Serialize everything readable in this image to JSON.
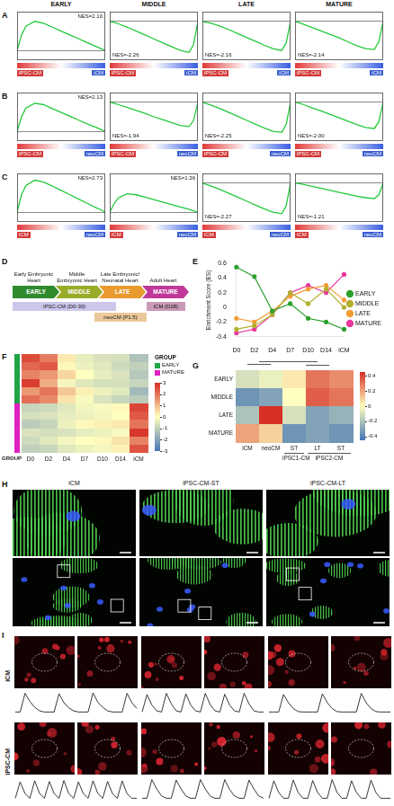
{
  "chart_data": [
    {
      "type": "line",
      "panel": "A",
      "x": [
        0,
        5,
        10,
        20,
        30,
        40,
        50,
        60,
        70,
        80,
        90,
        95,
        100
      ],
      "values": [
        0,
        0.32,
        0.5,
        0.6,
        0.56,
        0.48,
        0.4,
        0.32,
        0.24,
        0.16,
        0.08,
        0.04,
        0
      ],
      "xlim": [
        0,
        100
      ],
      "ylim": [
        -0.2,
        0.8
      ],
      "yticks": [
        0
      ],
      "grid": true,
      "tick_labels": false,
      "color": "#22c93a",
      "annotations": [
        "NES=2.10"
      ],
      "x_groups": [
        "iPSC-CM",
        "iCM"
      ]
    },
    {
      "type": "line",
      "panel": "A",
      "x": [
        0,
        5,
        10,
        20,
        30,
        40,
        50,
        60,
        70,
        80,
        90,
        95,
        100
      ],
      "values": [
        0,
        -0.02,
        -0.05,
        -0.12,
        -0.2,
        -0.28,
        -0.36,
        -0.44,
        -0.52,
        -0.6,
        -0.64,
        -0.48,
        0
      ],
      "xlim": [
        0,
        100
      ],
      "ylim": [
        -0.8,
        0.2
      ],
      "yticks": [
        0
      ],
      "grid": true,
      "tick_labels": false,
      "color": "#22c93a",
      "annotations": [
        "NES=-2.26"
      ],
      "x_groups": [
        "iPSC-CM",
        "iCM"
      ]
    },
    {
      "type": "line",
      "panel": "A",
      "x": [
        0,
        5,
        10,
        20,
        30,
        40,
        50,
        60,
        70,
        80,
        90,
        95,
        100
      ],
      "values": [
        0,
        -0.02,
        -0.04,
        -0.1,
        -0.17,
        -0.25,
        -0.33,
        -0.41,
        -0.49,
        -0.56,
        -0.6,
        -0.45,
        0
      ],
      "xlim": [
        0,
        100
      ],
      "ylim": [
        -0.8,
        0.2
      ],
      "yticks": [
        0
      ],
      "grid": true,
      "tick_labels": false,
      "color": "#22c93a",
      "annotations": [
        "NES=-2.16"
      ],
      "x_groups": [
        "iPSC-CM",
        "iCM"
      ]
    },
    {
      "type": "line",
      "panel": "A",
      "x": [
        0,
        5,
        10,
        20,
        30,
        40,
        50,
        60,
        70,
        80,
        90,
        95,
        100
      ],
      "values": [
        0,
        -0.03,
        -0.06,
        -0.13,
        -0.2,
        -0.27,
        -0.34,
        -0.42,
        -0.5,
        -0.56,
        -0.58,
        -0.42,
        0
      ],
      "xlim": [
        0,
        100
      ],
      "ylim": [
        -0.8,
        0.2
      ],
      "yticks": [
        0
      ],
      "grid": true,
      "tick_labels": false,
      "color": "#22c93a",
      "annotations": [
        "NES=-2.14"
      ],
      "x_groups": [
        "iPSC-CM",
        "iCM"
      ]
    },
    {
      "type": "line",
      "panel": "B",
      "x": [
        0,
        5,
        10,
        20,
        30,
        40,
        50,
        60,
        70,
        80,
        90,
        95,
        100
      ],
      "values": [
        0,
        0.3,
        0.48,
        0.58,
        0.55,
        0.47,
        0.39,
        0.31,
        0.23,
        0.15,
        0.08,
        0.04,
        0
      ],
      "xlim": [
        0,
        100
      ],
      "ylim": [
        -0.2,
        0.8
      ],
      "yticks": [
        0
      ],
      "grid": true,
      "tick_labels": false,
      "color": "#22c93a",
      "annotations": [
        "NES=2.13"
      ],
      "x_groups": [
        "iPSC-CM",
        "neoCM"
      ]
    },
    {
      "type": "line",
      "panel": "B",
      "x": [
        0,
        5,
        10,
        20,
        30,
        40,
        50,
        60,
        70,
        80,
        90,
        95,
        100
      ],
      "values": [
        0,
        -0.02,
        -0.05,
        -0.11,
        -0.17,
        -0.23,
        -0.3,
        -0.36,
        -0.42,
        -0.48,
        -0.5,
        -0.38,
        0
      ],
      "xlim": [
        0,
        100
      ],
      "ylim": [
        -0.8,
        0.2
      ],
      "yticks": [
        0
      ],
      "grid": true,
      "tick_labels": false,
      "color": "#22c93a",
      "annotations": [
        "NES=-1.94"
      ],
      "x_groups": [
        "iPSC-CM",
        "neoCM"
      ]
    },
    {
      "type": "line",
      "panel": "B",
      "x": [
        0,
        5,
        10,
        20,
        30,
        40,
        50,
        60,
        70,
        80,
        90,
        95,
        100
      ],
      "values": [
        0,
        -0.03,
        -0.06,
        -0.13,
        -0.21,
        -0.29,
        -0.37,
        -0.45,
        -0.53,
        -0.6,
        -0.62,
        -0.46,
        0
      ],
      "xlim": [
        0,
        100
      ],
      "ylim": [
        -0.8,
        0.2
      ],
      "yticks": [
        0
      ],
      "grid": true,
      "tick_labels": false,
      "color": "#22c93a",
      "annotations": [
        "NES=-2.25"
      ],
      "x_groups": [
        "iPSC-CM",
        "neoCM"
      ]
    },
    {
      "type": "line",
      "panel": "B",
      "x": [
        0,
        5,
        10,
        20,
        30,
        40,
        50,
        60,
        70,
        80,
        90,
        95,
        100
      ],
      "values": [
        0,
        -0.02,
        -0.05,
        -0.12,
        -0.18,
        -0.25,
        -0.32,
        -0.39,
        -0.46,
        -0.52,
        -0.54,
        -0.4,
        0
      ],
      "xlim": [
        0,
        100
      ],
      "ylim": [
        -0.8,
        0.2
      ],
      "yticks": [
        0
      ],
      "grid": true,
      "tick_labels": false,
      "color": "#22c93a",
      "annotations": [
        "NES=-2.00"
      ],
      "x_groups": [
        "iPSC-CM",
        "neoCM"
      ]
    },
    {
      "type": "line",
      "panel": "C",
      "x": [
        0,
        5,
        10,
        20,
        30,
        40,
        50,
        60,
        70,
        80,
        90,
        95,
        100
      ],
      "values": [
        0,
        0.36,
        0.55,
        0.66,
        0.62,
        0.54,
        0.45,
        0.36,
        0.27,
        0.18,
        0.09,
        0.05,
        0
      ],
      "xlim": [
        0,
        100
      ],
      "ylim": [
        -0.2,
        0.8
      ],
      "yticks": [
        0
      ],
      "grid": true,
      "tick_labels": false,
      "color": "#22c93a",
      "annotations": [
        "NES=2.73"
      ],
      "x_groups": [
        "iCM",
        "neoCM"
      ]
    },
    {
      "type": "line",
      "panel": "C",
      "x": [
        0,
        5,
        10,
        20,
        30,
        40,
        50,
        60,
        70,
        80,
        90,
        95,
        100
      ],
      "values": [
        0,
        0.18,
        0.3,
        0.38,
        0.36,
        0.31,
        0.26,
        0.21,
        0.16,
        0.11,
        0.06,
        0.03,
        0
      ],
      "xlim": [
        0,
        100
      ],
      "ylim": [
        -0.2,
        0.8
      ],
      "yticks": [
        0
      ],
      "grid": true,
      "tick_labels": false,
      "color": "#22c93a",
      "annotations": [
        "NES=1.36"
      ],
      "x_groups": [
        "iCM",
        "neoCM"
      ]
    },
    {
      "type": "line",
      "panel": "C",
      "x": [
        0,
        5,
        10,
        20,
        30,
        40,
        50,
        60,
        70,
        80,
        90,
        95,
        100
      ],
      "values": [
        0,
        -0.03,
        -0.06,
        -0.13,
        -0.21,
        -0.29,
        -0.37,
        -0.45,
        -0.53,
        -0.6,
        -0.63,
        -0.47,
        0
      ],
      "xlim": [
        0,
        100
      ],
      "ylim": [
        -0.8,
        0.2
      ],
      "yticks": [
        0
      ],
      "grid": true,
      "tick_labels": false,
      "color": "#22c93a",
      "annotations": [
        "NES=-2.27"
      ],
      "x_groups": [
        "iCM",
        "neoCM"
      ]
    },
    {
      "type": "line",
      "panel": "C",
      "x": [
        0,
        5,
        10,
        20,
        30,
        40,
        50,
        60,
        70,
        80,
        90,
        95,
        100
      ],
      "values": [
        0,
        -0.01,
        -0.03,
        -0.07,
        -0.11,
        -0.15,
        -0.19,
        -0.23,
        -0.27,
        -0.3,
        -0.32,
        -0.24,
        0
      ],
      "xlim": [
        0,
        100
      ],
      "ylim": [
        -0.8,
        0.2
      ],
      "yticks": [
        0
      ],
      "grid": true,
      "tick_labels": false,
      "color": "#22c93a",
      "annotations": [
        "NES=-1.21"
      ],
      "x_groups": [
        "iCM",
        "neoCM"
      ]
    },
    {
      "type": "line",
      "panel": "E",
      "categories": [
        "D0",
        "D2",
        "D4",
        "D7",
        "D10",
        "D14",
        "iCM"
      ],
      "series": [
        {
          "name": "EARLY",
          "color": "#2ca02c",
          "values": [
            0.55,
            0.42,
            -0.05,
            0.05,
            -0.15,
            -0.2,
            -0.3
          ]
        },
        {
          "name": "MIDDLE",
          "color": "#b3b02e",
          "values": [
            -0.3,
            -0.25,
            -0.1,
            0.2,
            0.05,
            0.25,
            0
          ]
        },
        {
          "name": "LATE",
          "color": "#f39c33",
          "values": [
            -0.15,
            -0.2,
            -0.05,
            0.15,
            0.25,
            0.3,
            0.1
          ]
        },
        {
          "name": "MATURE",
          "color": "#e6399b",
          "values": [
            -0.35,
            -0.3,
            -0.1,
            0.2,
            0.3,
            0.2,
            0.45
          ]
        }
      ],
      "ylabel": "Enrichment Score (ES)",
      "ylim": [
        -0.4,
        0.6
      ],
      "yticks": [
        -0.4,
        -0.2,
        0,
        0.2,
        0.4,
        0.6
      ],
      "grid": false,
      "legend": "right",
      "marker": "circle"
    }
  ],
  "column_titles": [
    "EARLY",
    "MIDDLE",
    "LATE",
    "MATURE"
  ],
  "diagram": {
    "letter": "D",
    "stages": [
      {
        "name": "EARLY",
        "label": "Early Embryonic Heart",
        "color": "#2e8b2e"
      },
      {
        "name": "MIDDLE",
        "label": "Middle Embryonic Heart",
        "color": "#9aab2a"
      },
      {
        "name": "LATE",
        "label": "Late Embryonic/ Neonatal Heart",
        "color": "#e89a2e"
      },
      {
        "name": "MATURE",
        "label": "Adult Heart",
        "color": "#c0399a"
      }
    ],
    "samples": [
      {
        "label": "iPSC-CM (D0-30)",
        "color": "#cdc6ea"
      },
      {
        "label": "neoCM (P1.5)",
        "color": "#ecc99a"
      },
      {
        "label": "iCM (D28)",
        "color": "#c99ab8"
      }
    ]
  },
  "heatmap_genes": {
    "letter": "F",
    "columns": [
      "D0",
      "D2",
      "D4",
      "D7",
      "D10",
      "D14",
      "iCM"
    ],
    "row_groups": [
      "EARLY",
      "EARLY",
      "EARLY",
      "EARLY",
      "EARLY",
      "EARLY",
      "MATURE",
      "MATURE",
      "MATURE",
      "MATURE",
      "MATURE",
      "MATURE"
    ],
    "cells": [
      [
        2.6,
        1.9,
        0.3,
        -0.4,
        -0.6,
        -0.7,
        -1.3
      ],
      [
        2.2,
        2.4,
        0.1,
        -0.3,
        -0.5,
        -0.8,
        -1.0
      ],
      [
        1.8,
        1.5,
        0.6,
        0,
        -0.4,
        -0.6,
        -1.2
      ],
      [
        2.8,
        1.2,
        -0.2,
        -0.5,
        -0.7,
        -0.7,
        -0.9
      ],
      [
        1.5,
        2.0,
        0.8,
        0.2,
        -0.3,
        -0.5,
        -1.5
      ],
      [
        2.1,
        1.7,
        0.4,
        -0.1,
        -0.6,
        -0.9,
        -1.1
      ],
      [
        -0.9,
        -0.8,
        -0.5,
        -0.2,
        -0.1,
        0.1,
        2.7
      ],
      [
        -0.7,
        -0.6,
        -0.4,
        -0.3,
        -0.2,
        0,
        2.4
      ],
      [
        -1.1,
        -0.9,
        -0.3,
        0.1,
        0.2,
        0.3,
        2.0
      ],
      [
        -0.6,
        -0.7,
        -0.6,
        -0.4,
        -0.3,
        -0.1,
        2.9
      ],
      [
        -0.8,
        -0.5,
        -0.2,
        0,
        0.1,
        0.4,
        1.8
      ],
      [
        -1.0,
        -0.9,
        -0.5,
        -0.3,
        -0.2,
        0.2,
        2.5
      ]
    ],
    "groups": [
      {
        "name": "EARLY",
        "color": "#1fa345"
      },
      {
        "name": "MATURE",
        "color": "#e020c0"
      }
    ],
    "legend_title": "GROUP",
    "group_axis_label": "GROUP",
    "color_range": [
      -3,
      3
    ],
    "color_ticks": [
      -3,
      -2,
      -1,
      0,
      1,
      2,
      3
    ]
  },
  "heatmap_scores": {
    "letter": "G",
    "rows": [
      "EARLY",
      "MIDDLE",
      "LATE",
      "MATURE"
    ],
    "columns": [
      "iCM",
      "neoCM",
      "ST",
      "LT",
      "ST"
    ],
    "column_groups": [
      null,
      null,
      "iPSC1-CM",
      "iPSC2-CM",
      "iPSC2-CM"
    ],
    "cells": [
      [
        -0.1,
        -0.05,
        0.05,
        0.3,
        0.25
      ],
      [
        -0.35,
        -0.3,
        0,
        0.35,
        0.3
      ],
      [
        -0.2,
        0.45,
        -0.1,
        -0.3,
        -0.25
      ],
      [
        0.2,
        0.1,
        -0.35,
        -0.3,
        -0.35
      ]
    ],
    "color_range": [
      -0.45,
      0.45
    ],
    "color_ticks": [
      -0.4,
      -0.2,
      0,
      0.2,
      0.4
    ]
  },
  "images": {
    "letter": "H",
    "titles": [
      "iCM",
      "iPSC-CM-ST",
      "iPSC-CM-LT"
    ]
  },
  "calcium": {
    "letter": "I",
    "ylim": [
      0,
      1
    ],
    "rows": [
      {
        "label": "iCM",
        "traces": [
          [
            0.1,
            0.1,
            0.9,
            0.55,
            0.3,
            0.15,
            0.1,
            0.1,
            0.1,
            0.88,
            0.5,
            0.28,
            0.15,
            0.1,
            0.1,
            0.1,
            0.92,
            0.52,
            0.3,
            0.15,
            0.1,
            0.1,
            0.1,
            0.9,
            0.5,
            0.25
          ],
          [
            0.1,
            0.85,
            0.4,
            0.15,
            0.1,
            0.9,
            0.45,
            0.15,
            0.1,
            0.88,
            0.4,
            0.15,
            0.1,
            0.9,
            0.42,
            0.15,
            0.1,
            0.86,
            0.4,
            0.15,
            0.1,
            0.9,
            0.45,
            0.15,
            0.1,
            0.1
          ],
          [
            0.1,
            0.1,
            0.1,
            0.85,
            0.5,
            0.25,
            0.12,
            0.1,
            0.1,
            0.1,
            0.1,
            0.88,
            0.5,
            0.25,
            0.12,
            0.1,
            0.1,
            0.1,
            0.1,
            0.9,
            0.5,
            0.25,
            0.12,
            0.1,
            0.1,
            0.1
          ]
        ]
      },
      {
        "label": "iPSC-CM",
        "traces": [
          [
            0.1,
            0.8,
            0.3,
            0.1,
            0.85,
            0.3,
            0.1,
            0.82,
            0.3,
            0.1,
            0.86,
            0.3,
            0.1,
            0.8,
            0.3,
            0.1,
            0.85,
            0.3,
            0.1,
            0.82,
            0.3,
            0.1,
            0.84,
            0.3,
            0.1,
            0.1
          ],
          [
            0.1,
            0.1,
            0.9,
            0.5,
            0.2,
            0.1,
            0.1,
            0.88,
            0.5,
            0.2,
            0.1,
            0.1,
            0.9,
            0.5,
            0.2,
            0.1,
            0.1,
            0.9,
            0.48,
            0.2,
            0.1,
            0.1,
            0.88,
            0.5,
            0.2,
            0.1
          ],
          [
            0.1,
            0.85,
            0.35,
            0.1,
            0.1,
            0.88,
            0.35,
            0.1,
            0.1,
            0.86,
            0.35,
            0.1,
            0.1,
            0.9,
            0.35,
            0.1,
            0.1,
            0.85,
            0.35,
            0.1,
            0.1,
            0.88,
            0.35,
            0.1,
            0.1,
            0.1
          ]
        ]
      }
    ]
  }
}
